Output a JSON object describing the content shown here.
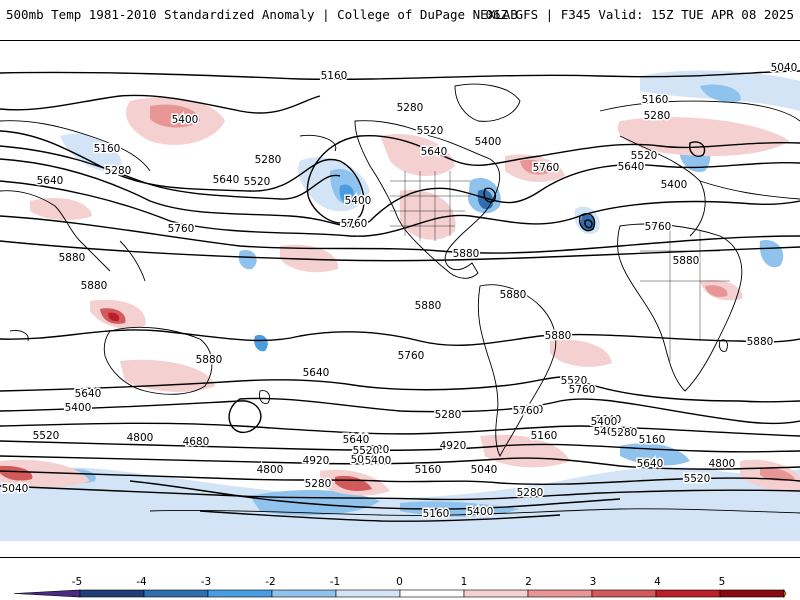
{
  "header": {
    "title": "500mb Temp 1981-2010 Standardized Anomaly | College of DuPage NEXLAB",
    "run_info": "06Z GFS | F345 Valid: 15Z TUE APR 08 2025"
  },
  "colors": {
    "ocean": "#ffffff",
    "contour": "#000000",
    "coast": "#000000"
  },
  "colorbar": {
    "ticks": [
      "-5",
      "-4",
      "-3",
      "-2",
      "-1",
      "0",
      "1",
      "2",
      "3",
      "4",
      "5"
    ],
    "colors": [
      "#4b2a86",
      "#1f3f78",
      "#2f6fb0",
      "#4a9de0",
      "#8fc2ec",
      "#d2e4f5",
      "#ffffff",
      "#f5d0d0",
      "#e79595",
      "#d25a5a",
      "#bb1f28",
      "#8a0a12",
      "#e8b400"
    ]
  },
  "contour_labels": [
    {
      "text": "5160",
      "id": "c1"
    },
    {
      "text": "5040",
      "id": "c2"
    },
    {
      "text": "5160",
      "id": "c3"
    },
    {
      "text": "5280",
      "id": "c4"
    },
    {
      "text": "5400",
      "id": "c5"
    },
    {
      "text": "5280",
      "id": "c6"
    },
    {
      "text": "5520",
      "id": "c7"
    },
    {
      "text": "5400",
      "id": "c8"
    },
    {
      "text": "5160",
      "id": "c9"
    },
    {
      "text": "5280",
      "id": "c10"
    },
    {
      "text": "5640",
      "id": "c11"
    },
    {
      "text": "5520",
      "id": "c12"
    },
    {
      "text": "5640",
      "id": "c13"
    },
    {
      "text": "5280",
      "id": "c14"
    },
    {
      "text": "5640",
      "id": "c15"
    },
    {
      "text": "5760",
      "id": "c16"
    },
    {
      "text": "5520",
      "id": "c17"
    },
    {
      "text": "5640",
      "id": "c18"
    },
    {
      "text": "5400",
      "id": "c19"
    },
    {
      "text": "5400",
      "id": "c20"
    },
    {
      "text": "5760",
      "id": "c21"
    },
    {
      "text": "5760",
      "id": "c22"
    },
    {
      "text": "5760",
      "id": "c23"
    },
    {
      "text": "5880",
      "id": "c24"
    },
    {
      "text": "5880",
      "id": "c25"
    },
    {
      "text": "5880",
      "id": "c26"
    },
    {
      "text": "5880",
      "id": "c27"
    },
    {
      "text": "5880",
      "id": "c28"
    },
    {
      "text": "5880",
      "id": "c29"
    },
    {
      "text": "5880",
      "id": "c30"
    },
    {
      "text": "5880",
      "id": "c31"
    },
    {
      "text": "5880",
      "id": "c32"
    },
    {
      "text": "5760",
      "id": "c33"
    },
    {
      "text": "5640",
      "id": "c34"
    },
    {
      "text": "5520",
      "id": "c35"
    },
    {
      "text": "5760",
      "id": "c36"
    },
    {
      "text": "5640",
      "id": "c37"
    },
    {
      "text": "5400",
      "id": "c38"
    },
    {
      "text": "5520",
      "id": "c39"
    },
    {
      "text": "5280",
      "id": "c40"
    },
    {
      "text": "5160",
      "id": "c41"
    },
    {
      "text": "5640",
      "id": "c42"
    },
    {
      "text": "5520",
      "id": "c43"
    },
    {
      "text": "5400",
      "id": "c44"
    },
    {
      "text": "5040",
      "id": "c45"
    },
    {
      "text": "4920",
      "id": "c46"
    },
    {
      "text": "4800",
      "id": "c47"
    },
    {
      "text": "4680",
      "id": "c48"
    },
    {
      "text": "5040",
      "id": "c49"
    },
    {
      "text": "4920",
      "id": "c50"
    },
    {
      "text": "4800",
      "id": "c51"
    },
    {
      "text": "5040",
      "id": "c52"
    },
    {
      "text": "5280",
      "id": "c53"
    },
    {
      "text": "5160",
      "id": "c54"
    },
    {
      "text": "5400",
      "id": "c55"
    },
    {
      "text": "5280",
      "id": "c56"
    },
    {
      "text": "5160",
      "id": "c57"
    },
    {
      "text": "4920",
      "id": "c58"
    },
    {
      "text": "4800",
      "id": "c59"
    },
    {
      "text": "5520",
      "id": "c60"
    },
    {
      "text": "5640",
      "id": "c61"
    },
    {
      "text": "5760",
      "id": "c62"
    },
    {
      "text": "5400",
      "id": "c63"
    },
    {
      "text": "5040",
      "id": "c64"
    },
    {
      "text": "5280",
      "id": "c65"
    },
    {
      "text": "5160",
      "id": "c66"
    },
    {
      "text": "5640",
      "id": "c67"
    },
    {
      "text": "5520",
      "id": "c68"
    },
    {
      "text": "5400",
      "id": "c69"
    }
  ]
}
